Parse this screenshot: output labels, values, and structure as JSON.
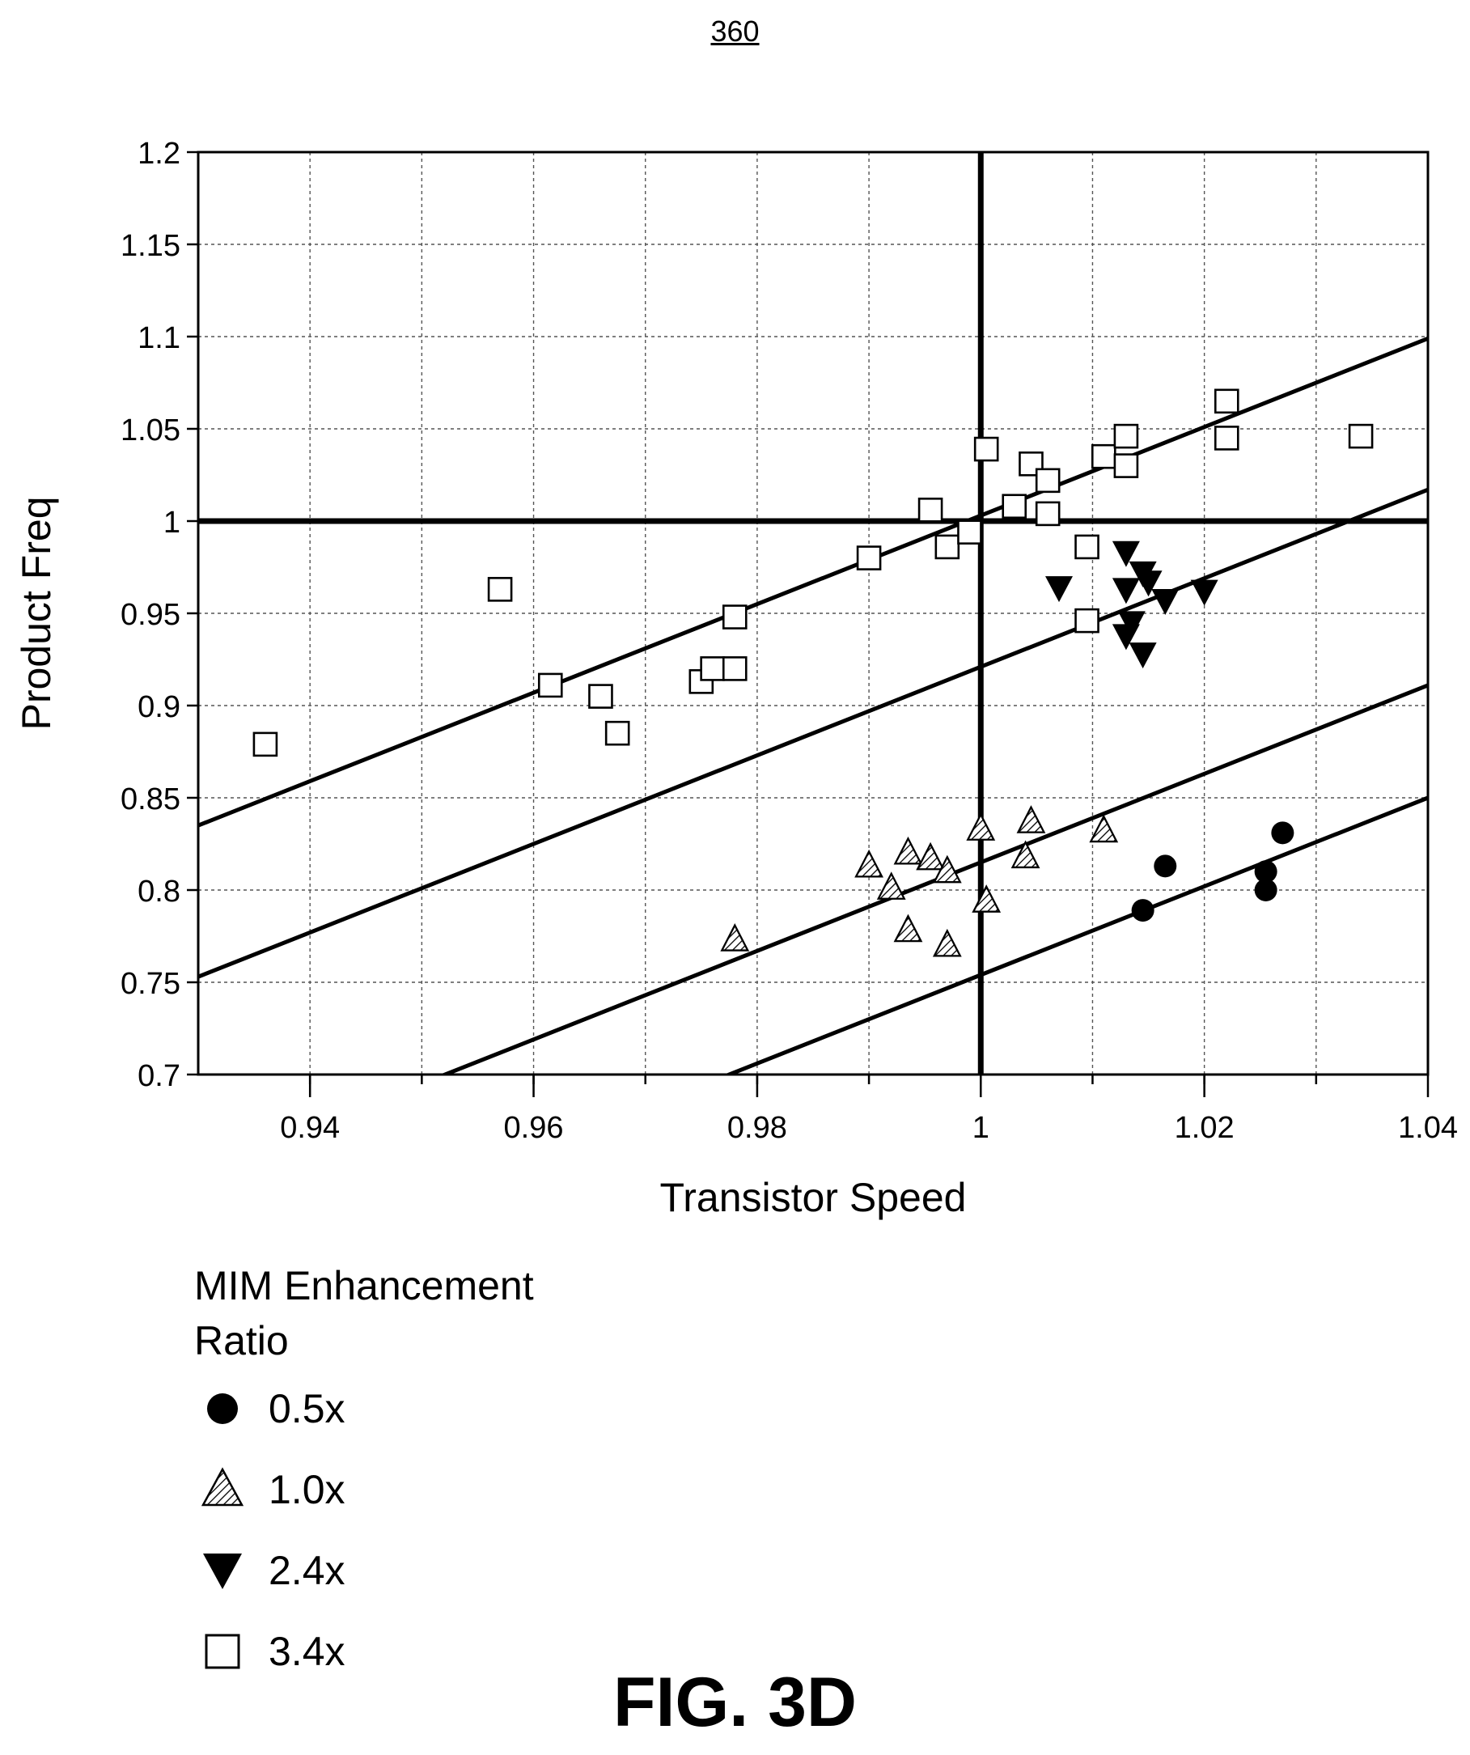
{
  "reference_number": "360",
  "figure_label": "FIG. 3D",
  "legend": {
    "title": "MIM Enhancement Ratio",
    "title_lines": [
      "MIM Enhancement",
      "Ratio"
    ],
    "items": [
      {
        "label": "0.5x",
        "marker": "filled-circle"
      },
      {
        "label": "1.0x",
        "marker": "hatched-triangle-up"
      },
      {
        "label": "2.4x",
        "marker": "filled-triangle-down"
      },
      {
        "label": "3.4x",
        "marker": "open-square"
      }
    ]
  },
  "chart_data": {
    "type": "scatter",
    "title": "",
    "xlabel": "Transistor Speed",
    "ylabel": "Product Freq",
    "xlim": [
      0.93,
      1.04
    ],
    "ylim": [
      0.7,
      1.2
    ],
    "xticks": [
      0.94,
      0.96,
      0.98,
      1,
      1.02,
      1.04
    ],
    "yticks": [
      0.7,
      0.75,
      0.8,
      0.85,
      0.9,
      0.95,
      1,
      1.05,
      1.1,
      1.15,
      1.2
    ],
    "grid": true,
    "legend_position": "below-left",
    "reference_lines": {
      "x": 1,
      "y": 1
    },
    "trend_lines": [
      {
        "series": "3.4x",
        "slope": 2.4,
        "intercept": 1.003
      },
      {
        "series": "2.4x",
        "slope": 2.4,
        "intercept": 0.921
      },
      {
        "series": "1.0x",
        "slope": 2.4,
        "intercept": 0.815
      },
      {
        "series": "0.5x",
        "slope": 2.4,
        "intercept": 0.754
      }
    ],
    "series": [
      {
        "name": "0.5x",
        "marker": "filled-circle",
        "points": [
          [
            1.0145,
            0.789
          ],
          [
            1.0165,
            0.813
          ],
          [
            1.0255,
            0.81
          ],
          [
            1.0255,
            0.8
          ],
          [
            1.027,
            0.831
          ]
        ]
      },
      {
        "name": "1.0x",
        "marker": "hatched-triangle-up",
        "points": [
          [
            0.978,
            0.773
          ],
          [
            0.99,
            0.813
          ],
          [
            0.992,
            0.801
          ],
          [
            0.9935,
            0.82
          ],
          [
            0.9935,
            0.778
          ],
          [
            0.9955,
            0.817
          ],
          [
            0.997,
            0.81
          ],
          [
            0.997,
            0.77
          ],
          [
            1.0,
            0.833
          ],
          [
            1.0005,
            0.794
          ],
          [
            1.004,
            0.818
          ],
          [
            1.0045,
            0.837
          ],
          [
            1.011,
            0.832
          ]
        ]
      },
      {
        "name": "2.4x",
        "marker": "filled-triangle-down",
        "points": [
          [
            1.007,
            0.964
          ],
          [
            1.013,
            0.983
          ],
          [
            1.013,
            0.963
          ],
          [
            1.013,
            0.938
          ],
          [
            1.0135,
            0.945
          ],
          [
            1.0145,
            0.928
          ],
          [
            1.0145,
            0.972
          ],
          [
            1.015,
            0.967
          ],
          [
            1.0165,
            0.957
          ],
          [
            1.02,
            0.962
          ]
        ]
      },
      {
        "name": "3.4x",
        "marker": "open-square",
        "points": [
          [
            0.936,
            0.879
          ],
          [
            0.957,
            0.963
          ],
          [
            0.9615,
            0.911
          ],
          [
            0.966,
            0.905
          ],
          [
            0.9675,
            0.885
          ],
          [
            0.975,
            0.913
          ],
          [
            0.976,
            0.92
          ],
          [
            0.978,
            0.92
          ],
          [
            0.978,
            0.948
          ],
          [
            0.99,
            0.98
          ],
          [
            0.9955,
            1.006
          ],
          [
            0.997,
            0.986
          ],
          [
            0.999,
            0.994
          ],
          [
            1.0005,
            1.039
          ],
          [
            1.003,
            1.008
          ],
          [
            1.0045,
            1.031
          ],
          [
            1.006,
            1.022
          ],
          [
            1.006,
            1.004
          ],
          [
            1.0095,
            0.986
          ],
          [
            1.0095,
            0.946
          ],
          [
            1.011,
            1.035
          ],
          [
            1.013,
            1.03
          ],
          [
            1.013,
            1.046
          ],
          [
            1.022,
            1.065
          ],
          [
            1.022,
            1.045
          ],
          [
            1.034,
            1.046
          ]
        ]
      }
    ]
  }
}
